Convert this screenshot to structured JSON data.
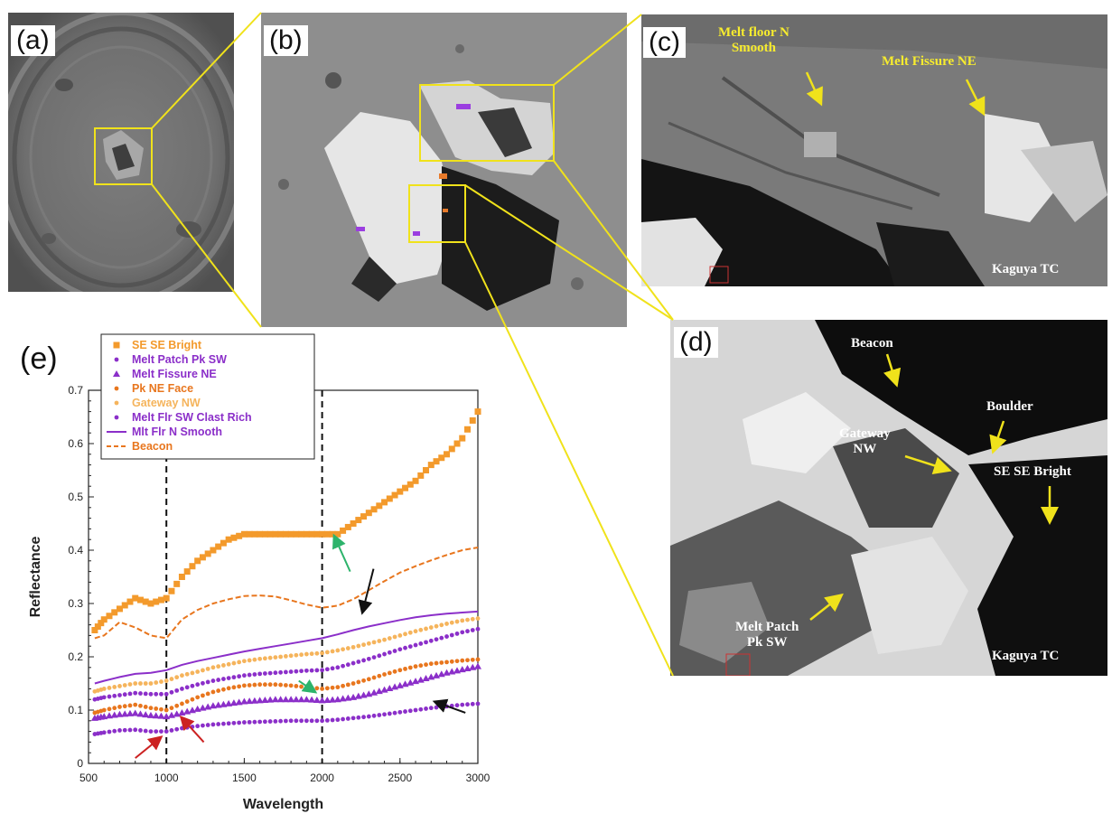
{
  "figure": {
    "panel_labels": {
      "a": "(a)",
      "b": "(b)",
      "c": "(c)",
      "d": "(d)",
      "e": "(e)"
    },
    "panel_c": {
      "annotations": [
        "Melt floor N\nSmooth",
        "Melt Fissure NE"
      ],
      "credit": "Kaguya TC"
    },
    "panel_d": {
      "annotations": [
        "Beacon",
        "Boulder",
        "Gateway\nNW",
        "SE SE Bright",
        "Melt Patch\nPk SW"
      ],
      "credit": "Kaguya TC"
    }
  },
  "chart_data": {
    "type": "line",
    "title": "",
    "xlabel": "Wavelength",
    "ylabel": "Reflectance",
    "xlim": [
      500,
      3000
    ],
    "ylim": [
      0,
      0.7
    ],
    "xticks": [
      500,
      1000,
      1500,
      2000,
      2500,
      3000
    ],
    "yticks": [
      0,
      0.1,
      0.2,
      0.3,
      0.4,
      0.5,
      0.6,
      0.7
    ],
    "vlines": [
      1000,
      2000
    ],
    "grid": false,
    "legend_position": "top-left",
    "series": [
      {
        "name": "SE SE Bright",
        "color": "#f39a2c",
        "style": "marker",
        "marker": "square",
        "x": [
          540,
          600,
          700,
          800,
          900,
          1000,
          1100,
          1200,
          1300,
          1400,
          1500,
          1600,
          1700,
          1800,
          1900,
          2000,
          2100,
          2200,
          2300,
          2400,
          2500,
          2600,
          2700,
          2800,
          2900,
          3000
        ],
        "y": [
          0.25,
          0.27,
          0.29,
          0.31,
          0.3,
          0.31,
          0.35,
          0.38,
          0.4,
          0.42,
          0.43,
          0.43,
          0.43,
          0.43,
          0.43,
          0.43,
          0.43,
          0.45,
          0.47,
          0.49,
          0.51,
          0.53,
          0.56,
          0.58,
          0.61,
          0.66
        ]
      },
      {
        "name": "Melt Patch Pk SW",
        "color": "#8b2fc9",
        "style": "marker",
        "marker": "dot",
        "x": [
          540,
          600,
          700,
          800,
          900,
          1000,
          1100,
          1200,
          1300,
          1400,
          1500,
          1600,
          1700,
          1800,
          1900,
          2000,
          2100,
          2200,
          2300,
          2400,
          2500,
          2600,
          2700,
          2800,
          2900,
          3000
        ],
        "y": [
          0.055,
          0.058,
          0.062,
          0.063,
          0.06,
          0.06,
          0.066,
          0.07,
          0.073,
          0.075,
          0.077,
          0.078,
          0.079,
          0.08,
          0.08,
          0.08,
          0.082,
          0.085,
          0.088,
          0.092,
          0.096,
          0.1,
          0.104,
          0.107,
          0.11,
          0.112
        ]
      },
      {
        "name": "Melt Fissure NE",
        "color": "#8b2fc9",
        "style": "marker",
        "marker": "triangle",
        "x": [
          540,
          600,
          700,
          800,
          900,
          1000,
          1100,
          1200,
          1300,
          1400,
          1500,
          1600,
          1700,
          1800,
          1900,
          2000,
          2100,
          2200,
          2300,
          2400,
          2500,
          2600,
          2700,
          2800,
          2900,
          3000
        ],
        "y": [
          0.085,
          0.088,
          0.092,
          0.094,
          0.09,
          0.088,
          0.095,
          0.102,
          0.108,
          0.112,
          0.116,
          0.118,
          0.12,
          0.12,
          0.12,
          0.118,
          0.12,
          0.124,
          0.13,
          0.138,
          0.146,
          0.154,
          0.162,
          0.17,
          0.176,
          0.182
        ]
      },
      {
        "name": "Pk NE Face",
        "color": "#e8761e",
        "style": "marker",
        "marker": "dot",
        "x": [
          540,
          600,
          700,
          800,
          900,
          1000,
          1100,
          1200,
          1300,
          1400,
          1500,
          1600,
          1700,
          1800,
          1900,
          2000,
          2100,
          2200,
          2300,
          2400,
          2500,
          2600,
          2700,
          2800,
          2900,
          3000
        ],
        "y": [
          0.095,
          0.1,
          0.106,
          0.11,
          0.104,
          0.1,
          0.112,
          0.124,
          0.134,
          0.141,
          0.146,
          0.148,
          0.148,
          0.146,
          0.143,
          0.14,
          0.143,
          0.15,
          0.158,
          0.167,
          0.175,
          0.182,
          0.187,
          0.19,
          0.193,
          0.195
        ]
      },
      {
        "name": "Gateway NW",
        "color": "#f5b45c",
        "style": "marker",
        "marker": "dot",
        "x": [
          540,
          600,
          700,
          800,
          900,
          1000,
          1100,
          1200,
          1300,
          1400,
          1500,
          1600,
          1700,
          1800,
          1900,
          2000,
          2100,
          2200,
          2300,
          2400,
          2500,
          2600,
          2700,
          2800,
          2900,
          3000
        ],
        "y": [
          0.135,
          0.14,
          0.145,
          0.15,
          0.15,
          0.155,
          0.165,
          0.172,
          0.18,
          0.186,
          0.192,
          0.196,
          0.199,
          0.202,
          0.205,
          0.207,
          0.212,
          0.218,
          0.225,
          0.232,
          0.24,
          0.248,
          0.255,
          0.262,
          0.268,
          0.272
        ]
      },
      {
        "name": "Melt Flr SW Clast Rich",
        "color": "#8b2fc9",
        "style": "marker",
        "marker": "dot",
        "x": [
          540,
          600,
          700,
          800,
          900,
          1000,
          1100,
          1200,
          1300,
          1400,
          1500,
          1600,
          1700,
          1800,
          1900,
          2000,
          2100,
          2200,
          2300,
          2400,
          2500,
          2600,
          2700,
          2800,
          2900,
          3000
        ],
        "y": [
          0.12,
          0.124,
          0.128,
          0.132,
          0.13,
          0.13,
          0.14,
          0.148,
          0.155,
          0.16,
          0.165,
          0.168,
          0.17,
          0.172,
          0.174,
          0.175,
          0.18,
          0.188,
          0.196,
          0.205,
          0.214,
          0.222,
          0.23,
          0.238,
          0.246,
          0.252
        ]
      },
      {
        "name": "Mlt Flr N Smooth",
        "color": "#8b2fc9",
        "style": "solid",
        "x": [
          540,
          600,
          700,
          800,
          900,
          1000,
          1100,
          1200,
          1300,
          1400,
          1500,
          1600,
          1700,
          1800,
          1900,
          2000,
          2100,
          2200,
          2300,
          2400,
          2500,
          2600,
          2700,
          2800,
          2900,
          3000
        ],
        "y": [
          0.15,
          0.155,
          0.162,
          0.168,
          0.17,
          0.175,
          0.185,
          0.192,
          0.198,
          0.204,
          0.21,
          0.215,
          0.22,
          0.225,
          0.23,
          0.235,
          0.242,
          0.25,
          0.257,
          0.263,
          0.269,
          0.274,
          0.278,
          0.281,
          0.283,
          0.285
        ]
      },
      {
        "name": "Beacon",
        "color": "#e8761e",
        "style": "dashed",
        "x": [
          540,
          600,
          700,
          800,
          900,
          1000,
          1100,
          1200,
          1300,
          1400,
          1500,
          1600,
          1700,
          1800,
          1900,
          2000,
          2100,
          2200,
          2300,
          2400,
          2500,
          2600,
          2700,
          2800,
          2900,
          3000
        ],
        "y": [
          0.235,
          0.24,
          0.265,
          0.255,
          0.24,
          0.235,
          0.27,
          0.288,
          0.3,
          0.308,
          0.314,
          0.315,
          0.313,
          0.306,
          0.298,
          0.292,
          0.296,
          0.308,
          0.325,
          0.342,
          0.358,
          0.37,
          0.381,
          0.391,
          0.4,
          0.405
        ]
      }
    ],
    "annotations": [
      {
        "type": "arrow",
        "color": "#2db36b",
        "from": [
          2180,
          0.36
        ],
        "to": [
          2080,
          0.425
        ]
      },
      {
        "type": "arrow",
        "color": "#111111",
        "from": [
          2330,
          0.365
        ],
        "to": [
          2260,
          0.285
        ]
      },
      {
        "type": "arrow",
        "color": "#2db36b",
        "from": [
          1850,
          0.155
        ],
        "to": [
          1950,
          0.135
        ]
      },
      {
        "type": "arrow",
        "color": "#111111",
        "from": [
          2920,
          0.095
        ],
        "to": [
          2730,
          0.115
        ]
      },
      {
        "type": "arrow",
        "color": "#cc2222",
        "from": [
          800,
          0.01
        ],
        "to": [
          960,
          0.048
        ]
      },
      {
        "type": "arrow",
        "color": "#cc2222",
        "from": [
          1240,
          0.04
        ],
        "to": [
          1100,
          0.085
        ]
      }
    ]
  }
}
